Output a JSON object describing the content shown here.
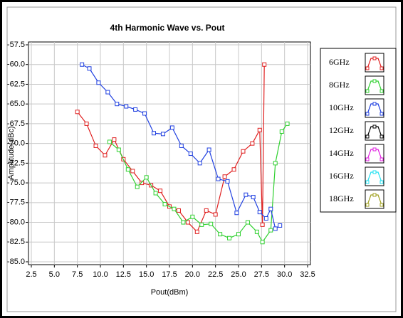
{
  "chart_data": {
    "type": "line",
    "title": "4th Harmonic Wave vs. Pout",
    "x_label": "Pout(dBm)",
    "y_label": "Amplitude(dBc)",
    "xlim": [
      2.5,
      32.5
    ],
    "xticks": [
      2.5,
      {
        "value": 5,
        "label": "5.0"
      },
      7.5,
      {
        "value": 10,
        "label": "10.0"
      },
      12.5,
      {
        "value": 15,
        "label": "15.0"
      },
      17.5,
      {
        "value": 20,
        "label": "20.0"
      },
      22.5,
      {
        "value": 25,
        "label": "25.0"
      },
      27.5,
      {
        "value": 30,
        "label": "30.0"
      },
      32.5
    ],
    "ylim": [
      -85,
      -57.5
    ],
    "yticks": [
      {
        "value": -57.5,
        "label": "-57.5"
      },
      {
        "value": -60,
        "label": "-60.0"
      },
      {
        "value": -62.5,
        "label": "-62.5"
      },
      {
        "value": -65,
        "label": "-65.0"
      },
      {
        "value": -67.5,
        "label": "-67.5"
      },
      {
        "value": -70,
        "label": "-70.0"
      },
      {
        "value": -72.5,
        "label": "-72.5"
      },
      {
        "value": -75,
        "label": "-75.0"
      },
      {
        "value": -77.5,
        "label": "-77.5"
      },
      {
        "value": -80,
        "label": "-80.0"
      },
      {
        "value": -82.5,
        "label": "-82.5"
      },
      {
        "value": -85,
        "label": "-85.0"
      }
    ],
    "grid": true,
    "series": [
      {
        "name": "6GHz",
        "color": "#e02020",
        "x": [
          7.5,
          8.5,
          9.5,
          10.5,
          11.5,
          12.5,
          13.5,
          14.5,
          15.5,
          16.5,
          17.5,
          18.5,
          19.5,
          20.5,
          21.5,
          22.5,
          23.5,
          24.5,
          25.5,
          26.5,
          27.3,
          27.6,
          27.8
        ],
        "values": [
          -66,
          -67.5,
          -70.3,
          -71.5,
          -69.5,
          -72,
          -73.5,
          -75,
          -75.3,
          -76,
          -78,
          -78.5,
          -80,
          -81.2,
          -78.5,
          -79,
          -74.2,
          -73.3,
          -71,
          -70,
          -68.3,
          -80.3,
          -60
        ]
      },
      {
        "name": "8GHz",
        "color": "#30d030",
        "x": [
          11,
          12,
          13,
          14,
          15,
          16,
          17,
          18,
          19,
          20,
          21,
          22,
          23,
          24,
          25,
          26,
          27,
          27.6,
          28.5,
          29,
          29.7,
          30.3
        ],
        "values": [
          -69.8,
          -70.8,
          -73.3,
          -75.5,
          -74.3,
          -76.3,
          -77.7,
          -78.3,
          -80,
          -79.3,
          -80.3,
          -80.2,
          -81.5,
          -82,
          -81.5,
          -80,
          -81.2,
          -82.5,
          -81,
          -72.5,
          -68.5,
          -67.5
        ]
      },
      {
        "name": "10GHz",
        "color": "#2040e0",
        "x": [
          8,
          8.8,
          9.8,
          10.8,
          11.8,
          12.8,
          13.8,
          14.8,
          15.8,
          16.8,
          17.8,
          18.8,
          19.8,
          20.8,
          21.8,
          22.8,
          23.8,
          24.8,
          25.8,
          26.6,
          27.3,
          28,
          28.5,
          29,
          29.5
        ],
        "values": [
          -60,
          -60.5,
          -62.3,
          -63.5,
          -65,
          -65.3,
          -65.7,
          -66.2,
          -68.7,
          -68.8,
          -68,
          -70.3,
          -71.3,
          -72.5,
          -70.8,
          -74.5,
          -74.8,
          -78.8,
          -76.5,
          -76.8,
          -78.7,
          -79.5,
          -78.3,
          -80.8,
          -80.4
        ]
      },
      {
        "name": "12GHz",
        "color": "#000000",
        "x": [],
        "values": []
      },
      {
        "name": "14GHz",
        "color": "#e020e0",
        "x": [],
        "values": []
      },
      {
        "name": "16GHz",
        "color": "#20e0f0",
        "x": [],
        "values": []
      },
      {
        "name": "18GHz",
        "color": "#a0a020",
        "x": [],
        "values": []
      }
    ]
  }
}
